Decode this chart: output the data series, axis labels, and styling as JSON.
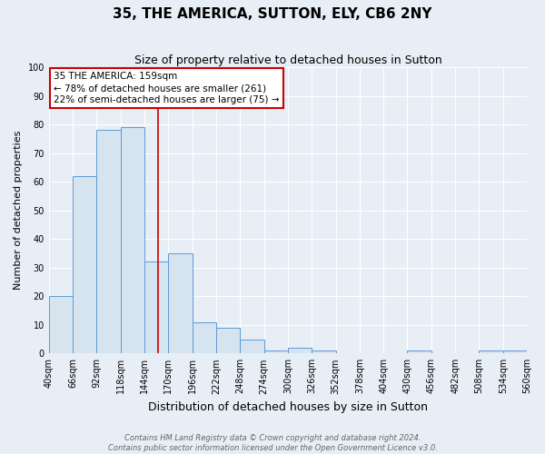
{
  "title": "35, THE AMERICA, SUTTON, ELY, CB6 2NY",
  "subtitle": "Size of property relative to detached houses in Sutton",
  "xlabel": "Distribution of detached houses by size in Sutton",
  "ylabel": "Number of detached properties",
  "bin_edges": [
    40,
    66,
    92,
    118,
    144,
    170,
    196,
    222,
    248,
    274,
    300,
    326,
    352,
    378,
    404,
    430,
    456,
    482,
    508,
    534,
    560
  ],
  "bar_heights": [
    20,
    62,
    78,
    79,
    32,
    35,
    11,
    9,
    5,
    1,
    2,
    1,
    0,
    0,
    0,
    1,
    0,
    0,
    1,
    1
  ],
  "bar_color": "#d6e4f0",
  "bar_edge_color": "#5b9bd5",
  "vline_x": 159,
  "vline_color": "#cc0000",
  "annotation_text": "35 THE AMERICA: 159sqm\n← 78% of detached houses are smaller (261)\n22% of semi-detached houses are larger (75) →",
  "annotation_box_color": "#ffffff",
  "annotation_box_edge_color": "#cc0000",
  "ylim": [
    0,
    100
  ],
  "yticks": [
    0,
    10,
    20,
    30,
    40,
    50,
    60,
    70,
    80,
    90,
    100
  ],
  "bg_color": "#e8eef5",
  "plot_bg_color": "#e8eef5",
  "grid_color": "#ffffff",
  "footnote1": "Contains HM Land Registry data © Crown copyright and database right 2024.",
  "footnote2": "Contains public sector information licensed under the Open Government Licence v3.0.",
  "title_fontsize": 11,
  "subtitle_fontsize": 9,
  "xlabel_fontsize": 9,
  "ylabel_fontsize": 8,
  "tick_fontsize": 7,
  "annotation_fontsize": 7.5,
  "footnote_fontsize": 6,
  "figsize": [
    6.0,
    5.0
  ],
  "dpi": 100
}
